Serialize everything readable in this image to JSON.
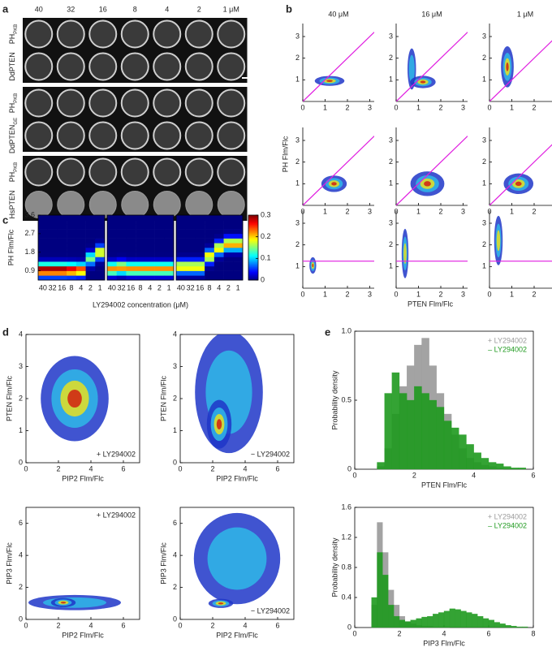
{
  "panel_a": {
    "letter": "a",
    "columns": [
      "40",
      "32",
      "16",
      "8",
      "4",
      "2",
      "1 μM"
    ],
    "rows": [
      {
        "label": "PH",
        "sub": "PKB"
      },
      {
        "label": "DdPTEN"
      },
      {
        "label": "PH",
        "sub": "PKB"
      },
      {
        "label": "DdPTEN",
        "sub": "GE"
      },
      {
        "label": "PH",
        "sub": "PKB"
      },
      {
        "label": "HsPTEN"
      }
    ]
  },
  "chart_data": [
    {
      "type": "scatter_grid",
      "letter": "b",
      "columns": [
        "40 μM",
        "16 μM",
        "1 μM"
      ],
      "xlabel": "PTEN Flm/Flc",
      "ylabel": "PH Flm/Flc",
      "xlim": [
        0,
        3.2
      ],
      "ylim": [
        0,
        3.6
      ],
      "xticks": [
        0,
        1,
        2,
        3
      ],
      "yticks": [
        1,
        2,
        3
      ],
      "line_color": "#e01ee0",
      "rows": [
        {
          "diagonal": true,
          "cells": [
            {
              "clouds": [
                {
                  "x": 1.2,
                  "y": 0.95,
                  "sx": 0.35,
                  "sy": 0.12,
                  "level": 3
                }
              ]
            },
            {
              "clouds": [
                {
                  "x": 0.7,
                  "y": 1.5,
                  "sx": 0.1,
                  "sy": 0.5,
                  "level": 1
                },
                {
                  "x": 1.2,
                  "y": 0.9,
                  "sx": 0.3,
                  "sy": 0.15,
                  "level": 3
                }
              ]
            },
            {
              "clouds": [
                {
                  "x": 0.8,
                  "y": 1.6,
                  "sx": 0.15,
                  "sy": 0.5,
                  "level": 3
                }
              ]
            }
          ]
        },
        {
          "diagonal": true,
          "cells": [
            {
              "clouds": [
                {
                  "x": 1.4,
                  "y": 1.0,
                  "sx": 0.3,
                  "sy": 0.2,
                  "level": 3
                }
              ]
            },
            {
              "clouds": [
                {
                  "x": 1.4,
                  "y": 1.0,
                  "sx": 0.4,
                  "sy": 0.3,
                  "level": 3
                }
              ]
            },
            {
              "clouds": [
                {
                  "x": 1.3,
                  "y": 1.0,
                  "sx": 0.35,
                  "sy": 0.25,
                  "level": 3
                }
              ]
            }
          ]
        },
        {
          "hline": 1.25,
          "cells": [
            {
              "clouds": [
                {
                  "x": 0.45,
                  "y": 1.05,
                  "sx": 0.08,
                  "sy": 0.2,
                  "level": 3
                }
              ]
            },
            {
              "clouds": [
                {
                  "x": 0.4,
                  "y": 1.6,
                  "sx": 0.08,
                  "sy": 0.6,
                  "level": 2
                }
              ]
            },
            {
              "clouds": [
                {
                  "x": 0.4,
                  "y": 2.2,
                  "sx": 0.1,
                  "sy": 0.6,
                  "level": 2
                }
              ]
            }
          ]
        }
      ]
    },
    {
      "type": "heatmap",
      "letter": "c",
      "ylabel": "PH Flm/Flc",
      "xlabel": "LY294002 concentration (μM)",
      "ylim": [
        0.45,
        3.6
      ],
      "yticks": [
        0.9,
        1.8,
        2.7,
        3.6
      ],
      "categories": [
        "40",
        "32",
        "16",
        "8",
        "4",
        "2",
        "1"
      ],
      "clim": [
        0,
        0.3
      ],
      "cticks": [
        0,
        0.1,
        0.2,
        0.3
      ],
      "blocks": [
        {
          "peak_y": [
            0.95,
            0.95,
            0.95,
            0.95,
            0.95,
            1.5,
            1.8
          ],
          "peak_value": [
            0.3,
            0.3,
            0.3,
            0.28,
            0.25,
            0.15,
            0.2
          ]
        },
        {
          "peak_y": [
            1.0,
            1.05,
            1.0,
            1.0,
            1.0,
            1.0,
            1.0
          ],
          "peak_value": [
            0.22,
            0.22,
            0.22,
            0.22,
            0.22,
            0.22,
            0.22
          ]
        },
        {
          "peak_y": [
            1.1,
            1.1,
            1.1,
            1.6,
            2.0,
            2.2,
            2.2
          ],
          "peak_value": [
            0.2,
            0.2,
            0.2,
            0.2,
            0.2,
            0.22,
            0.22
          ]
        }
      ]
    },
    {
      "type": "density",
      "letter": "d",
      "xlabel": "PIP2 Flm/Flc",
      "ylabel": "PTEN Flm/Flc",
      "note": "+ LY294002",
      "note_corner": "bottom-right",
      "xlim": [
        0,
        7
      ],
      "ylim": [
        0,
        4
      ],
      "xticks": [
        0,
        2,
        4,
        6
      ],
      "yticks": [
        0,
        1,
        2,
        3,
        4
      ],
      "clouds": [
        {
          "x": 3,
          "y": 2,
          "sx": 1.1,
          "sy": 0.7,
          "level": 3
        }
      ]
    },
    {
      "type": "density",
      "xlabel": "PIP2 Flm/Flc",
      "ylabel": "PTEN Flm/Flc",
      "note": "− LY294002",
      "note_corner": "bottom-right",
      "xlim": [
        0,
        7
      ],
      "ylim": [
        0,
        4
      ],
      "xticks": [
        0,
        2,
        4,
        6
      ],
      "yticks": [
        0,
        1,
        2,
        3,
        4
      ],
      "clouds": [
        {
          "x": 3,
          "y": 2.2,
          "sx": 1.1,
          "sy": 1.0,
          "level": 1
        },
        {
          "x": 2.4,
          "y": 1.2,
          "sx": 0.4,
          "sy": 0.4,
          "level": 3
        }
      ]
    },
    {
      "type": "density",
      "xlabel": "PIP2 Flm/Flc",
      "ylabel": "PIP3 Flm/Flc",
      "note": "+ LY294002",
      "note_corner": "top-right",
      "xlim": [
        0,
        7
      ],
      "ylim": [
        0,
        7
      ],
      "xticks": [
        0,
        2,
        4,
        6
      ],
      "yticks": [
        0,
        2,
        4,
        6
      ],
      "clouds": [
        {
          "x": 3,
          "y": 1.05,
          "sx": 1.5,
          "sy": 0.25,
          "level": 1
        },
        {
          "x": 2.3,
          "y": 1.05,
          "sx": 0.4,
          "sy": 0.15,
          "level": 3
        }
      ]
    },
    {
      "type": "density",
      "xlabel": "PIP2 Flm/Flc",
      "ylabel": "PIP3 Flm/Flc",
      "note": "− LY294002",
      "note_corner": "bottom-right",
      "xlim": [
        0,
        7
      ],
      "ylim": [
        0,
        7
      ],
      "xticks": [
        0,
        2,
        4,
        6
      ],
      "yticks": [
        0,
        2,
        4,
        6
      ],
      "clouds": [
        {
          "x": 3.5,
          "y": 3.8,
          "sx": 1.4,
          "sy": 1.5,
          "level": 1
        },
        {
          "x": 2.5,
          "y": 1.0,
          "sx": 0.4,
          "sy": 0.15,
          "level": 3
        }
      ]
    },
    {
      "type": "histogram",
      "letter": "e",
      "xlabel": "PTEN Flm/Flc",
      "ylabel": "Probability density",
      "xlim": [
        0,
        6
      ],
      "ylim": [
        0,
        1
      ],
      "xticks": [
        0,
        2,
        4,
        6
      ],
      "yticks": [
        0,
        0.5,
        {
          "value": 1,
          "label": "1.0"
        }
      ],
      "bins": [
        0,
        0.25,
        0.5,
        0.75,
        1,
        1.25,
        1.5,
        1.75,
        2,
        2.25,
        2.5,
        2.75,
        3,
        3.25,
        3.5,
        3.75,
        4,
        4.25,
        4.5,
        4.75,
        5,
        5.25,
        5.5,
        5.75,
        6
      ],
      "series": [
        {
          "name": "+ LY294002",
          "color": "#9a9a9a",
          "values": [
            0,
            0,
            0,
            0.02,
            0.15,
            0.4,
            0.6,
            0.75,
            0.9,
            0.95,
            0.75,
            0.55,
            0.4,
            0.25,
            0.15,
            0.08,
            0.05,
            0.03,
            0.02,
            0.01,
            0,
            0,
            0,
            0
          ]
        },
        {
          "name": "– LY294002",
          "color": "#1f9a1f",
          "values": [
            0,
            0,
            0,
            0.05,
            0.55,
            0.7,
            0.55,
            0.5,
            0.6,
            0.55,
            0.5,
            0.45,
            0.35,
            0.3,
            0.25,
            0.18,
            0.12,
            0.08,
            0.05,
            0.04,
            0.02,
            0.01,
            0.01,
            0
          ]
        }
      ]
    },
    {
      "type": "histogram",
      "xlabel": "PIP3 Flm/Flc",
      "ylabel": "Probability density",
      "xlim": [
        0,
        8
      ],
      "ylim": [
        0,
        1.6
      ],
      "xticks": [
        0,
        2,
        4,
        6,
        8
      ],
      "yticks": [
        0,
        0.4,
        0.8,
        1.2,
        1.6
      ],
      "bins": [
        0,
        0.25,
        0.5,
        0.75,
        1,
        1.25,
        1.5,
        1.75,
        2,
        2.25,
        2.5,
        2.75,
        3,
        3.25,
        3.5,
        3.75,
        4,
        4.25,
        4.5,
        4.75,
        5,
        5.25,
        5.5,
        5.75,
        6,
        6.25,
        6.5,
        6.75,
        7,
        7.25,
        7.5,
        7.75,
        8
      ],
      "series": [
        {
          "name": "+ LY294002",
          "color": "#9a9a9a",
          "values": [
            0,
            0,
            0,
            0.3,
            1.4,
            1.0,
            0.5,
            0.3,
            0.15,
            0.08,
            0.05,
            0.03,
            0.02,
            0.02,
            0.01,
            0.01,
            0.01,
            0,
            0,
            0,
            0,
            0,
            0,
            0,
            0,
            0,
            0,
            0,
            0,
            0,
            0,
            0
          ]
        },
        {
          "name": "– LY294002",
          "color": "#1f9a1f",
          "values": [
            0,
            0,
            0,
            0.4,
            1.0,
            0.7,
            0.3,
            0.15,
            0.1,
            0.08,
            0.1,
            0.12,
            0.14,
            0.15,
            0.18,
            0.2,
            0.22,
            0.25,
            0.24,
            0.22,
            0.2,
            0.18,
            0.15,
            0.12,
            0.1,
            0.07,
            0.05,
            0.03,
            0.02,
            0.01,
            0.01,
            0
          ]
        }
      ]
    }
  ]
}
